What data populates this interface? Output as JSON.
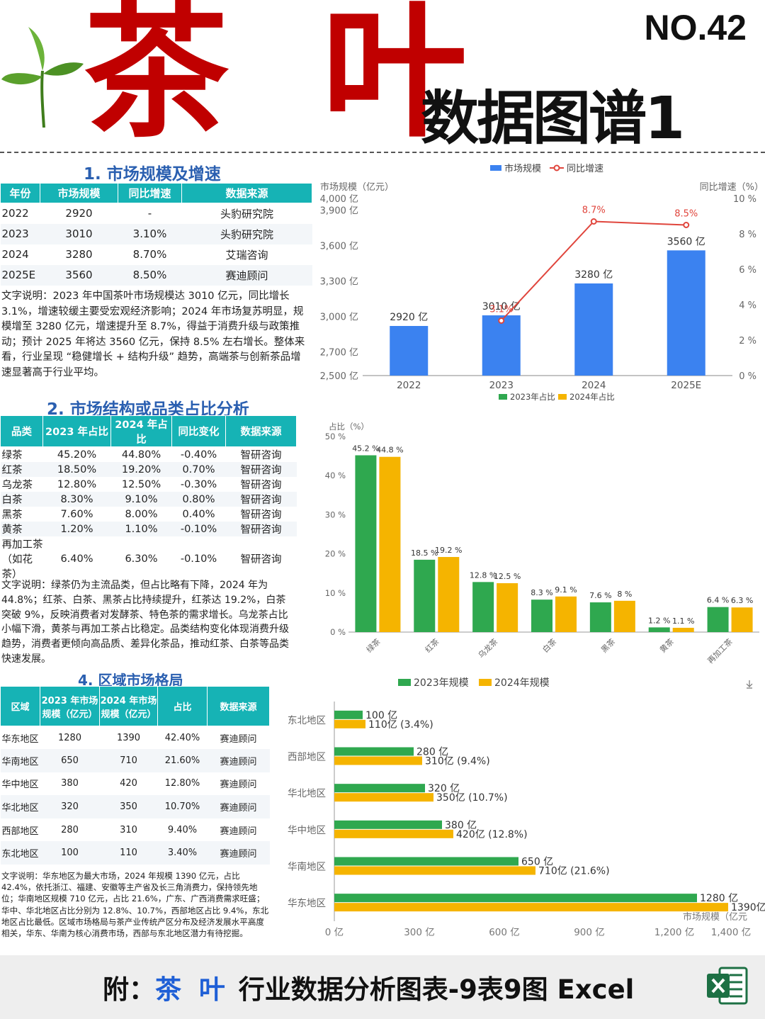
{
  "header": {
    "big_title": "茶 叶",
    "issue": "NO.42",
    "subtitle": "数据图谱1"
  },
  "section1": {
    "title": "1. 市场规模及增速",
    "columns": [
      "年份",
      "市场规模",
      "同比增速",
      "数据来源"
    ],
    "rows": [
      [
        "2022",
        "2920",
        "-",
        "头豹研究院"
      ],
      [
        "2023",
        "3010",
        "3.10%",
        "头豹研究院"
      ],
      [
        "2024",
        "3280",
        "8.70%",
        "艾瑞咨询"
      ],
      [
        "2025E",
        "3560",
        "8.50%",
        "赛迪顾问"
      ]
    ],
    "note": "文字说明：2023 年中国茶叶市场规模达 3010 亿元，同比增长 3.1%，增速较缓主要受宏观经济影响；2024 年市场复苏明显，规模增至 3280 亿元，增速提升至 8.7%，得益于消费升级与政策推动；预计 2025 年将达 3560 亿元，保持 8.5% 左右增长。整体来看，行业呈现 “稳健增长 + 结构升级” 趋势，高端茶与创新茶品增速显著高于行业平均。"
  },
  "section2": {
    "title": "2. 市场结构或品类占比分析",
    "columns": [
      "品类",
      "2023 年占比",
      "2024 年占比",
      "同比变化",
      "数据来源"
    ],
    "rows": [
      [
        "绿茶",
        "45.20%",
        "44.80%",
        "-0.40%",
        "智研咨询"
      ],
      [
        "红茶",
        "18.50%",
        "19.20%",
        "0.70%",
        "智研咨询"
      ],
      [
        "乌龙茶",
        "12.80%",
        "12.50%",
        "-0.30%",
        "智研咨询"
      ],
      [
        "白茶",
        "8.30%",
        "9.10%",
        "0.80%",
        "智研咨询"
      ],
      [
        "黑茶",
        "7.60%",
        "8.00%",
        "0.40%",
        "智研咨询"
      ],
      [
        "黄茶",
        "1.20%",
        "1.10%",
        "-0.10%",
        "智研咨询"
      ],
      [
        "再加工茶（如花茶）",
        "6.40%",
        "6.30%",
        "-0.10%",
        "智研咨询"
      ]
    ],
    "note": "文字说明：绿茶仍为主流品类，但占比略有下降，2024 年为 44.8%；红茶、白茶、黑茶占比持续提升，红茶达 19.2%，白茶突破 9%，反映消费者对发酵茶、特色茶的需求增长。乌龙茶占比小幅下滑，黄茶与再加工茶占比稳定。品类结构变化体现消费升级趋势，消费者更倾向高品质、差异化茶品，推动红茶、白茶等品类快速发展。"
  },
  "section4": {
    "title": "4. 区域市场格局",
    "columns": [
      "区域",
      "2023 年市场规模（亿元）",
      "2024 年市场规模（亿元）",
      "占比",
      "数据来源"
    ],
    "rows": [
      [
        "华东地区",
        "1280",
        "1390",
        "42.40%",
        "赛迪顾问"
      ],
      [
        "华南地区",
        "650",
        "710",
        "21.60%",
        "赛迪顾问"
      ],
      [
        "华中地区",
        "380",
        "420",
        "12.80%",
        "赛迪顾问"
      ],
      [
        "华北地区",
        "320",
        "350",
        "10.70%",
        "赛迪顾问"
      ],
      [
        "西部地区",
        "280",
        "310",
        "9.40%",
        "赛迪顾问"
      ],
      [
        "东北地区",
        "100",
        "110",
        "3.40%",
        "赛迪顾问"
      ]
    ],
    "note": "文字说明：华东地区为最大市场，2024 年规模 1390 亿元，占比 42.4%，依托浙江、福建、安徽等主产省及长三角消费力，保持领先地位；华南地区规模 710 亿元，占比 21.6%，广东、广西消费需求旺盛；华中、华北地区占比分别为 12.8%、10.7%，西部地区占比 9.4%，东北地区占比最低。区域市场格局与茶产业传统产区分布及经济发展水平高度相关，华东、华南为核心消费市场，西部与东北地区潜力有待挖掘。"
  },
  "footer": {
    "prefix": "附：",
    "highlight": "茶 叶",
    "suffix": " 行业数据分析图表-9表9图 Excel"
  },
  "chart_data": [
    {
      "type": "bar",
      "combo": "bar+line",
      "categories": [
        "2022",
        "2023",
        "2024",
        "2025E"
      ],
      "series": [
        {
          "name": "市场规模",
          "type": "bar",
          "values": [
            2920,
            3010,
            3280,
            3560
          ],
          "labels": [
            "2920 亿",
            "3010 亿",
            "3280 亿",
            "3560 亿"
          ],
          "color": "#3b82f0"
        },
        {
          "name": "同比增速",
          "type": "line",
          "values": [
            null,
            3.1,
            8.7,
            8.5
          ],
          "labels": [
            "",
            "3.1%",
            "8.7%",
            "8.5%"
          ],
          "color": "#e0453c"
        }
      ],
      "ylabel": "市场规模（亿元）",
      "y2label": "同比增速（%）",
      "ylim": [
        2500,
        4000
      ],
      "yticks": [
        "2,500 亿",
        "2,700 亿",
        "3,000 亿",
        "3,300 亿",
        "3,600 亿",
        "3,900 亿",
        "4,000 亿"
      ],
      "ytick_values": [
        2500,
        2700,
        3000,
        3300,
        3600,
        3900,
        4000
      ],
      "y2lim": [
        0,
        10
      ],
      "y2ticks": [
        "0 %",
        "2 %",
        "4 %",
        "6 %",
        "8 %",
        "10 %"
      ],
      "legend": "top-center",
      "grid": false
    },
    {
      "type": "bar",
      "categories": [
        "绿茶",
        "红茶",
        "乌龙茶",
        "白茶",
        "黑茶",
        "黄茶",
        "再加工茶"
      ],
      "series": [
        {
          "name": "2023年占比",
          "values": [
            45.2,
            18.5,
            12.8,
            8.3,
            7.6,
            1.2,
            6.4
          ],
          "labels": [
            "45.2 %",
            "18.5 %",
            "12.8 %",
            "8.3 %",
            "7.6 %",
            "1.2 %",
            "6.4 %"
          ],
          "color": "#2fa84f"
        },
        {
          "name": "2024年占比",
          "values": [
            44.8,
            19.2,
            12.5,
            9.1,
            8.0,
            1.1,
            6.3
          ],
          "labels": [
            "44.8 %",
            "19.2 %",
            "12.5 %",
            "9.1 %",
            "8 %",
            "1.1 %",
            "6.3 %"
          ],
          "color": "#f5b400"
        }
      ],
      "ylabel": "占比（%）",
      "ylim": [
        0,
        50
      ],
      "yticks": [
        "0 %",
        "10 %",
        "20 %",
        "30 %",
        "40 %",
        "50 %"
      ],
      "legend": "top-center",
      "grid": false
    },
    {
      "type": "bar",
      "orientation": "horizontal",
      "categories": [
        "东北地区",
        "西部地区",
        "华北地区",
        "华中地区",
        "华南地区",
        "华东地区"
      ],
      "series": [
        {
          "name": "2023年规模",
          "values": [
            100,
            280,
            320,
            380,
            650,
            1280
          ],
          "labels": [
            "100 亿",
            "280 亿",
            "320 亿",
            "380 亿",
            "650 亿",
            "1280 亿"
          ],
          "color": "#2fa84f"
        },
        {
          "name": "2024年规模",
          "values": [
            110,
            310,
            350,
            420,
            710,
            1390
          ],
          "labels": [
            "110亿 (3.4%)",
            "310亿 (9.4%)",
            "350亿 (10.7%)",
            "420亿 (12.8%)",
            "710亿 (21.6%)",
            "1390亿 (42.4%)"
          ],
          "color": "#f5b400"
        }
      ],
      "xlabel": "市场规模（亿元",
      "xlim": [
        0,
        1500
      ],
      "xticks": [
        "0 亿",
        "300 亿",
        "600 亿",
        "900 亿",
        "1,200 亿",
        "1,400 亿"
      ],
      "xtick_values": [
        0,
        300,
        600,
        900,
        1200,
        1400
      ],
      "legend": "top-center",
      "grid": false
    }
  ]
}
